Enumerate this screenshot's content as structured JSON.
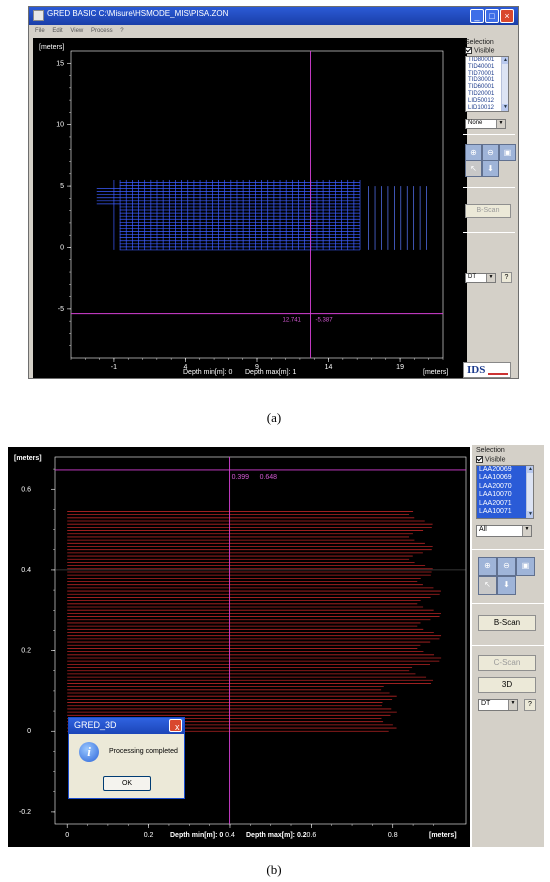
{
  "panel_a": {
    "window_title": "GRED BASIC C:\\Misure\\HSMODE_MIS\\PISA.ZON",
    "menu": [
      "File",
      "Edit",
      "View",
      "Process",
      "?"
    ],
    "selection_label": "Selection",
    "visible_label": "Visible",
    "list_items": [
      "TID80001",
      "TID40001",
      "TID70001",
      "TID30001",
      "TID60001",
      "TID20001",
      "LID50012",
      "LID10012"
    ],
    "filter_value": "None",
    "bscan_label": "B-Scan",
    "dt_value": "DT",
    "help_label": "?",
    "logo": "IDS",
    "chart_data": {
      "type": "scatter",
      "yunit": "[meters]",
      "xunit": "[meters]",
      "y_ticks": [
        "15",
        "10",
        "5",
        "0",
        "-5"
      ],
      "x_ticks": [
        "-1",
        "4",
        "9",
        "14",
        "19"
      ],
      "xlim": [
        -4,
        22
      ],
      "ylim": [
        -9,
        16
      ],
      "depth_min_label": "Depth min[m]: 0",
      "depth_max_label": "Depth max[m]: 1",
      "cursor_x": 12.741,
      "cursor_y": -5.387,
      "cursor_readout_x": "12.741",
      "cursor_readout_y": "-5.387"
    }
  },
  "caption_a": "(a)",
  "panel_b": {
    "selection_label": "Selection",
    "visible_label": "Visible",
    "list_items": [
      "LAA20069",
      "LAA10069",
      "LAA20070",
      "LAA10070",
      "LAA20071",
      "LAA10071"
    ],
    "filter_value": "All",
    "bscan_label": "B-Scan",
    "cscan_label": "C-Scan",
    "threed_label": "3D",
    "dt_value": "DT",
    "help_label": "?",
    "dialog": {
      "title": "GRED_3D",
      "message": "Processing completed",
      "ok_label": "OK",
      "info_glyph": "i",
      "close_glyph": "x"
    },
    "chart_data": {
      "type": "bar",
      "yunit": "[meters]",
      "xunit": "[meters]",
      "y_ticks": [
        "0.6",
        "0.4",
        "0.2",
        "0",
        "-0.2"
      ],
      "x_ticks": [
        "0",
        "0.2",
        "0.4",
        "0.6",
        "0.8"
      ],
      "xlim": [
        -0.03,
        0.98
      ],
      "ylim": [
        -0.23,
        0.68
      ],
      "depth_min_label": "Depth min[m]: 0",
      "depth_max_label": "Depth max[m]: 0.2",
      "cursor_x": 0.399,
      "cursor_y": 0.648,
      "cursor_readout_x": "0.399",
      "cursor_readout_y": "0.648",
      "line_color": "#b52424"
    }
  },
  "caption_b": "(b)"
}
